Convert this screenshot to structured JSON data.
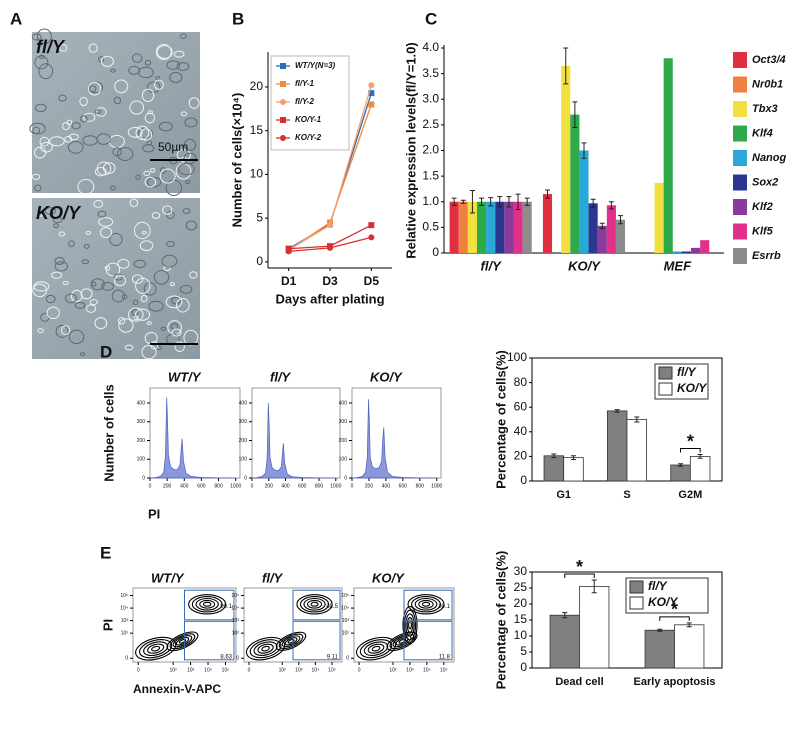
{
  "micrographs": {
    "panel": "A",
    "images": [
      {
        "label": "fl/Y"
      },
      {
        "label": "KO/Y"
      }
    ],
    "scale_bar": "50µm"
  },
  "chart_data": [
    {
      "type": "line",
      "panel": "B",
      "ylabel": "Number of cells(×10⁴)",
      "xlabel": "Days after plating",
      "categories": [
        "D1",
        "D3",
        "D5"
      ],
      "ylim": [
        -0.7,
        24
      ],
      "yticks": [
        0,
        5,
        10,
        15,
        20
      ],
      "legend": "upper left",
      "series": [
        {
          "name": "WT/Y(N=3)",
          "color": "#2e6db4",
          "marker": "square",
          "values": [
            1.5,
            4.3,
            19.3
          ]
        },
        {
          "name": "fl/Y-1",
          "color": "#f08a3c",
          "marker": "square",
          "values": [
            1.3,
            4.5,
            18.0
          ]
        },
        {
          "name": "fl/Y-2",
          "color": "#f4a070",
          "marker": "circle",
          "values": [
            1.4,
            4.2,
            20.2
          ]
        },
        {
          "name": "KO/Y-1",
          "color": "#d83030",
          "marker": "square",
          "values": [
            1.5,
            1.8,
            4.2
          ]
        },
        {
          "name": "KO/Y-2",
          "color": "#d83030",
          "marker": "circle",
          "values": [
            1.2,
            1.6,
            2.8
          ]
        }
      ]
    },
    {
      "type": "bar",
      "panel": "C",
      "ylabel": "Relative expression levels(fl/Y=1.0)",
      "italic_categories": true,
      "categories": [
        "fl/Y",
        "KO/Y",
        "MEF"
      ],
      "ylim": [
        0,
        4.0
      ],
      "yticks": [
        0,
        0.5,
        {
          "value": 1,
          "label": "1.0"
        },
        1.5,
        {
          "value": 2,
          "label": "2.0"
        },
        2.5,
        {
          "value": 3,
          "label": "3.0"
        },
        3.5,
        {
          "value": 4,
          "label": "4.0"
        }
      ],
      "legend": "right",
      "series": [
        {
          "name": "Oct3/4",
          "color": "#e0303f",
          "values": [
            1.0,
            1.15,
            0
          ],
          "errors": [
            0.07,
            0.08,
            null
          ]
        },
        {
          "name": "Nr0b1",
          "color": "#f08040",
          "values": [
            1.0,
            null,
            0
          ],
          "errors": [
            0.03,
            null,
            null
          ]
        },
        {
          "name": "Tbx3",
          "color": "#f2e040",
          "values": [
            1.0,
            3.65,
            1.37
          ],
          "errors": [
            0.22,
            0.35,
            null
          ]
        },
        {
          "name": "Klf4",
          "color": "#2faa4a",
          "values": [
            1.0,
            2.7,
            3.8
          ],
          "errors": [
            0.07,
            0.25,
            null
          ]
        },
        {
          "name": "Nanog",
          "color": "#2aa8d8",
          "values": [
            1.0,
            2.0,
            0.03
          ],
          "errors": [
            0.08,
            0.15,
            null
          ]
        },
        {
          "name": "Sox2",
          "color": "#2c3590",
          "values": [
            1.0,
            0.97,
            0.03
          ],
          "errors": [
            0.1,
            0.08,
            null
          ]
        },
        {
          "name": "Klf2",
          "color": "#8a3a9a",
          "values": [
            1.0,
            0.53,
            0.1
          ],
          "errors": [
            0.1,
            0.05,
            null
          ]
        },
        {
          "name": "Klf5",
          "color": "#e0308a",
          "values": [
            1.0,
            0.93,
            0.25
          ],
          "errors": [
            0.15,
            0.07,
            null
          ]
        },
        {
          "name": "Esrrb",
          "color": "#8c8c8c",
          "values": [
            1.0,
            0.65,
            null
          ],
          "errors": [
            0.07,
            0.08,
            null
          ]
        }
      ]
    },
    {
      "type": "area",
      "panel": "D",
      "title": "WT/Y",
      "ylabel": "Number of cells",
      "xlabel": "PI",
      "color": "#8a97dd",
      "xlim": [
        0,
        1050
      ],
      "ylim": [
        0,
        480
      ],
      "xticks": [
        0,
        200,
        400,
        600,
        800,
        1000
      ],
      "yticks": [
        0,
        100,
        200,
        300,
        400
      ],
      "x": [
        0,
        60,
        120,
        160,
        180,
        195,
        205,
        215,
        240,
        280,
        320,
        350,
        365,
        375,
        390,
        420,
        480,
        600,
        800,
        1000
      ],
      "values": [
        0,
        2,
        8,
        30,
        120,
        430,
        300,
        120,
        60,
        45,
        45,
        70,
        160,
        210,
        90,
        25,
        8,
        3,
        1,
        0
      ]
    },
    {
      "type": "area",
      "title": "fl/Y",
      "color": "#8a97dd",
      "xlim": [
        0,
        1050
      ],
      "ylim": [
        0,
        480
      ],
      "xticks": [
        0,
        200,
        400,
        600,
        800,
        1000
      ],
      "yticks": [
        0,
        100,
        200,
        300,
        400
      ],
      "x": [
        0,
        60,
        120,
        160,
        180,
        195,
        205,
        215,
        240,
        280,
        320,
        350,
        365,
        375,
        390,
        420,
        480,
        600,
        800,
        1000
      ],
      "values": [
        0,
        2,
        8,
        25,
        100,
        400,
        280,
        110,
        55,
        40,
        40,
        60,
        140,
        185,
        80,
        22,
        7,
        3,
        1,
        0
      ]
    },
    {
      "type": "area",
      "title": "KO/Y",
      "color": "#8a97dd",
      "xlim": [
        0,
        1050
      ],
      "ylim": [
        0,
        480
      ],
      "xticks": [
        0,
        200,
        400,
        600,
        800,
        1000
      ],
      "yticks": [
        0,
        100,
        200,
        300,
        400
      ],
      "x": [
        0,
        60,
        120,
        160,
        180,
        195,
        205,
        215,
        240,
        280,
        320,
        350,
        365,
        375,
        390,
        420,
        480,
        600,
        800,
        1000
      ],
      "values": [
        0,
        2,
        8,
        30,
        110,
        420,
        290,
        110,
        60,
        50,
        55,
        90,
        220,
        270,
        110,
        30,
        8,
        3,
        1,
        0
      ]
    },
    {
      "type": "bar",
      "ylabel": "Percentage of cells(%)",
      "categories": [
        "G1",
        "S",
        "G2M"
      ],
      "ylim": [
        0,
        100
      ],
      "yticks": [
        0,
        20,
        40,
        60,
        80,
        100
      ],
      "legend": "upper right",
      "series": [
        {
          "name": "fl/Y",
          "color": "#808080",
          "values": [
            20.5,
            57,
            13
          ],
          "errors": [
            1.5,
            1,
            1
          ]
        },
        {
          "name": "KO/Y",
          "color": "#ffffff",
          "values": [
            19,
            50,
            20
          ],
          "errors": [
            1.5,
            2,
            1.5
          ]
        }
      ],
      "significance": [
        {
          "label": "*",
          "category": 2
        }
      ]
    },
    {
      "type": "contour",
      "panel": "E",
      "title": "WT/Y",
      "ylabel": "PI",
      "xlabel": "Annexin-V-APC",
      "xlog": true,
      "ylog": true,
      "xlim": [
        0.5,
        400000
      ],
      "ylim": [
        0.5,
        400000
      ],
      "xticks": [
        {
          "value": 1,
          "label": "0"
        },
        {
          "value": 100,
          "label": "10²"
        },
        {
          "value": 1000,
          "label": "10³"
        },
        {
          "value": 10000,
          "label": "10⁴"
        },
        {
          "value": 100000,
          "label": "10⁵"
        }
      ],
      "yticks": [
        {
          "value": 1,
          "label": "0"
        },
        {
          "value": 100,
          "label": "10²"
        },
        {
          "value": 1000,
          "label": "10³"
        },
        {
          "value": 10000,
          "label": "10⁴"
        },
        {
          "value": 100000,
          "label": "10⁵"
        }
      ],
      "gate_values": [
        90.1,
        8.63
      ]
    },
    {
      "type": "contour",
      "title": "fl/Y",
      "xlog": true,
      "ylog": true,
      "xlim": [
        0.5,
        400000
      ],
      "ylim": [
        0.5,
        400000
      ],
      "xticks": [
        {
          "value": 1,
          "label": "0"
        },
        {
          "value": 100,
          "label": "10²"
        },
        {
          "value": 1000,
          "label": "10³"
        },
        {
          "value": 10000,
          "label": "10⁴"
        },
        {
          "value": 100000,
          "label": "10⁵"
        }
      ],
      "yticks": [
        {
          "value": 1,
          "label": "0"
        },
        {
          "value": 100,
          "label": "10²"
        },
        {
          "value": 1000,
          "label": "10³"
        },
        {
          "value": 10000,
          "label": "10⁴"
        },
        {
          "value": 100000,
          "label": "10⁵"
        }
      ],
      "gate_values": [
        88.5,
        9.11
      ]
    },
    {
      "type": "contour",
      "title": "KO/Y",
      "xlog": true,
      "ylog": true,
      "xlim": [
        0.5,
        400000
      ],
      "ylim": [
        0.5,
        400000
      ],
      "xticks": [
        {
          "value": 1,
          "label": "0"
        },
        {
          "value": 100,
          "label": "10²"
        },
        {
          "value": 1000,
          "label": "10³"
        },
        {
          "value": 10000,
          "label": "10⁴"
        },
        {
          "value": 100000,
          "label": "10⁵"
        }
      ],
      "yticks": [
        {
          "value": 1,
          "label": "0"
        },
        {
          "value": 100,
          "label": "10²"
        },
        {
          "value": 1000,
          "label": "10³"
        },
        {
          "value": 10000,
          "label": "10⁴"
        },
        {
          "value": 100000,
          "label": "10⁵"
        }
      ],
      "gate_values": [
        80.1,
        11.8
      ]
    },
    {
      "type": "bar",
      "ylabel": "Percentage of cells(%)",
      "categories": [
        "Dead cell",
        "Early apoptosis"
      ],
      "ylim": [
        0,
        30
      ],
      "yticks": [
        0,
        5,
        10,
        15,
        20,
        25,
        30
      ],
      "legend": "upper right",
      "series": [
        {
          "name": "fl/Y",
          "color": "#808080",
          "values": [
            16.5,
            11.8
          ],
          "errors": [
            0.8,
            0.3
          ]
        },
        {
          "name": "KO/Y",
          "color": "#ffffff",
          "values": [
            25.5,
            13.5
          ],
          "errors": [
            2,
            0.6
          ]
        }
      ],
      "significance": [
        {
          "label": "*",
          "category": 0
        },
        {
          "label": "*",
          "category": 1
        }
      ]
    }
  ]
}
